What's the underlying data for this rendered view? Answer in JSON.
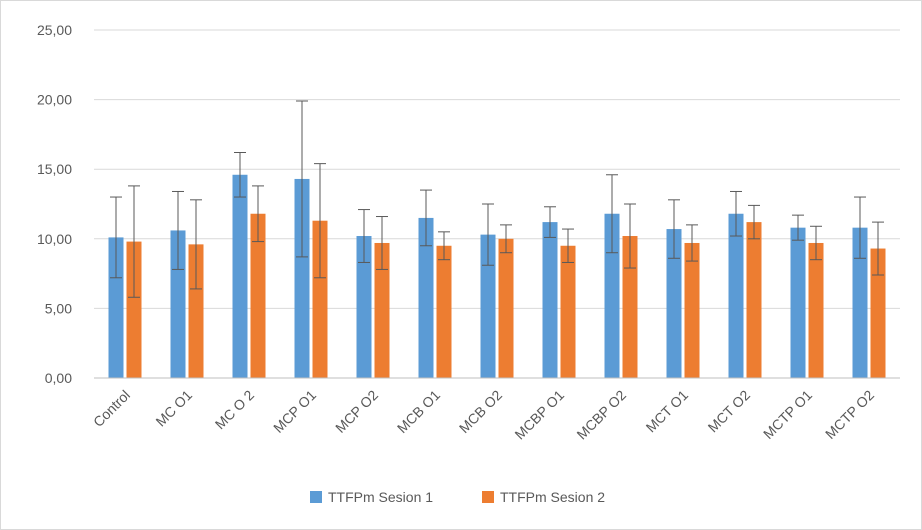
{
  "chart_data": {
    "type": "bar",
    "title": "",
    "xlabel": "",
    "ylabel": "",
    "ylim": [
      0,
      25
    ],
    "yticks": [
      "0,00",
      "5,00",
      "10,00",
      "15,00",
      "20,00",
      "25,00"
    ],
    "grid": true,
    "legend_position": "bottom",
    "categories": [
      "Control",
      "MC O1",
      "MC O 2",
      "MCP O1",
      "MCP O2",
      "MCB O1",
      "MCB O2",
      "MCBP O1",
      "MCBP O2",
      "MCT O1",
      "MCT O2",
      "MCTP O1",
      "MCTP O2"
    ],
    "series": [
      {
        "name": "TTFPm Sesion 1",
        "color": "#5B9BD5",
        "values": [
          10.1,
          10.6,
          14.6,
          14.3,
          10.2,
          11.5,
          10.3,
          11.2,
          11.8,
          10.7,
          11.8,
          10.8,
          10.8
        ],
        "errors": [
          2.9,
          2.8,
          1.6,
          5.6,
          1.9,
          2.0,
          2.2,
          1.1,
          2.8,
          2.1,
          1.6,
          0.9,
          2.2
        ]
      },
      {
        "name": "TTFPm Sesion 2",
        "color": "#ED7D31",
        "values": [
          9.8,
          9.6,
          11.8,
          11.3,
          9.7,
          9.5,
          10.0,
          9.5,
          10.2,
          9.7,
          11.2,
          9.7,
          9.3
        ],
        "errors": [
          4.0,
          3.2,
          2.0,
          4.1,
          1.9,
          1.0,
          1.0,
          1.2,
          2.3,
          1.3,
          1.2,
          1.2,
          1.9
        ]
      }
    ]
  }
}
